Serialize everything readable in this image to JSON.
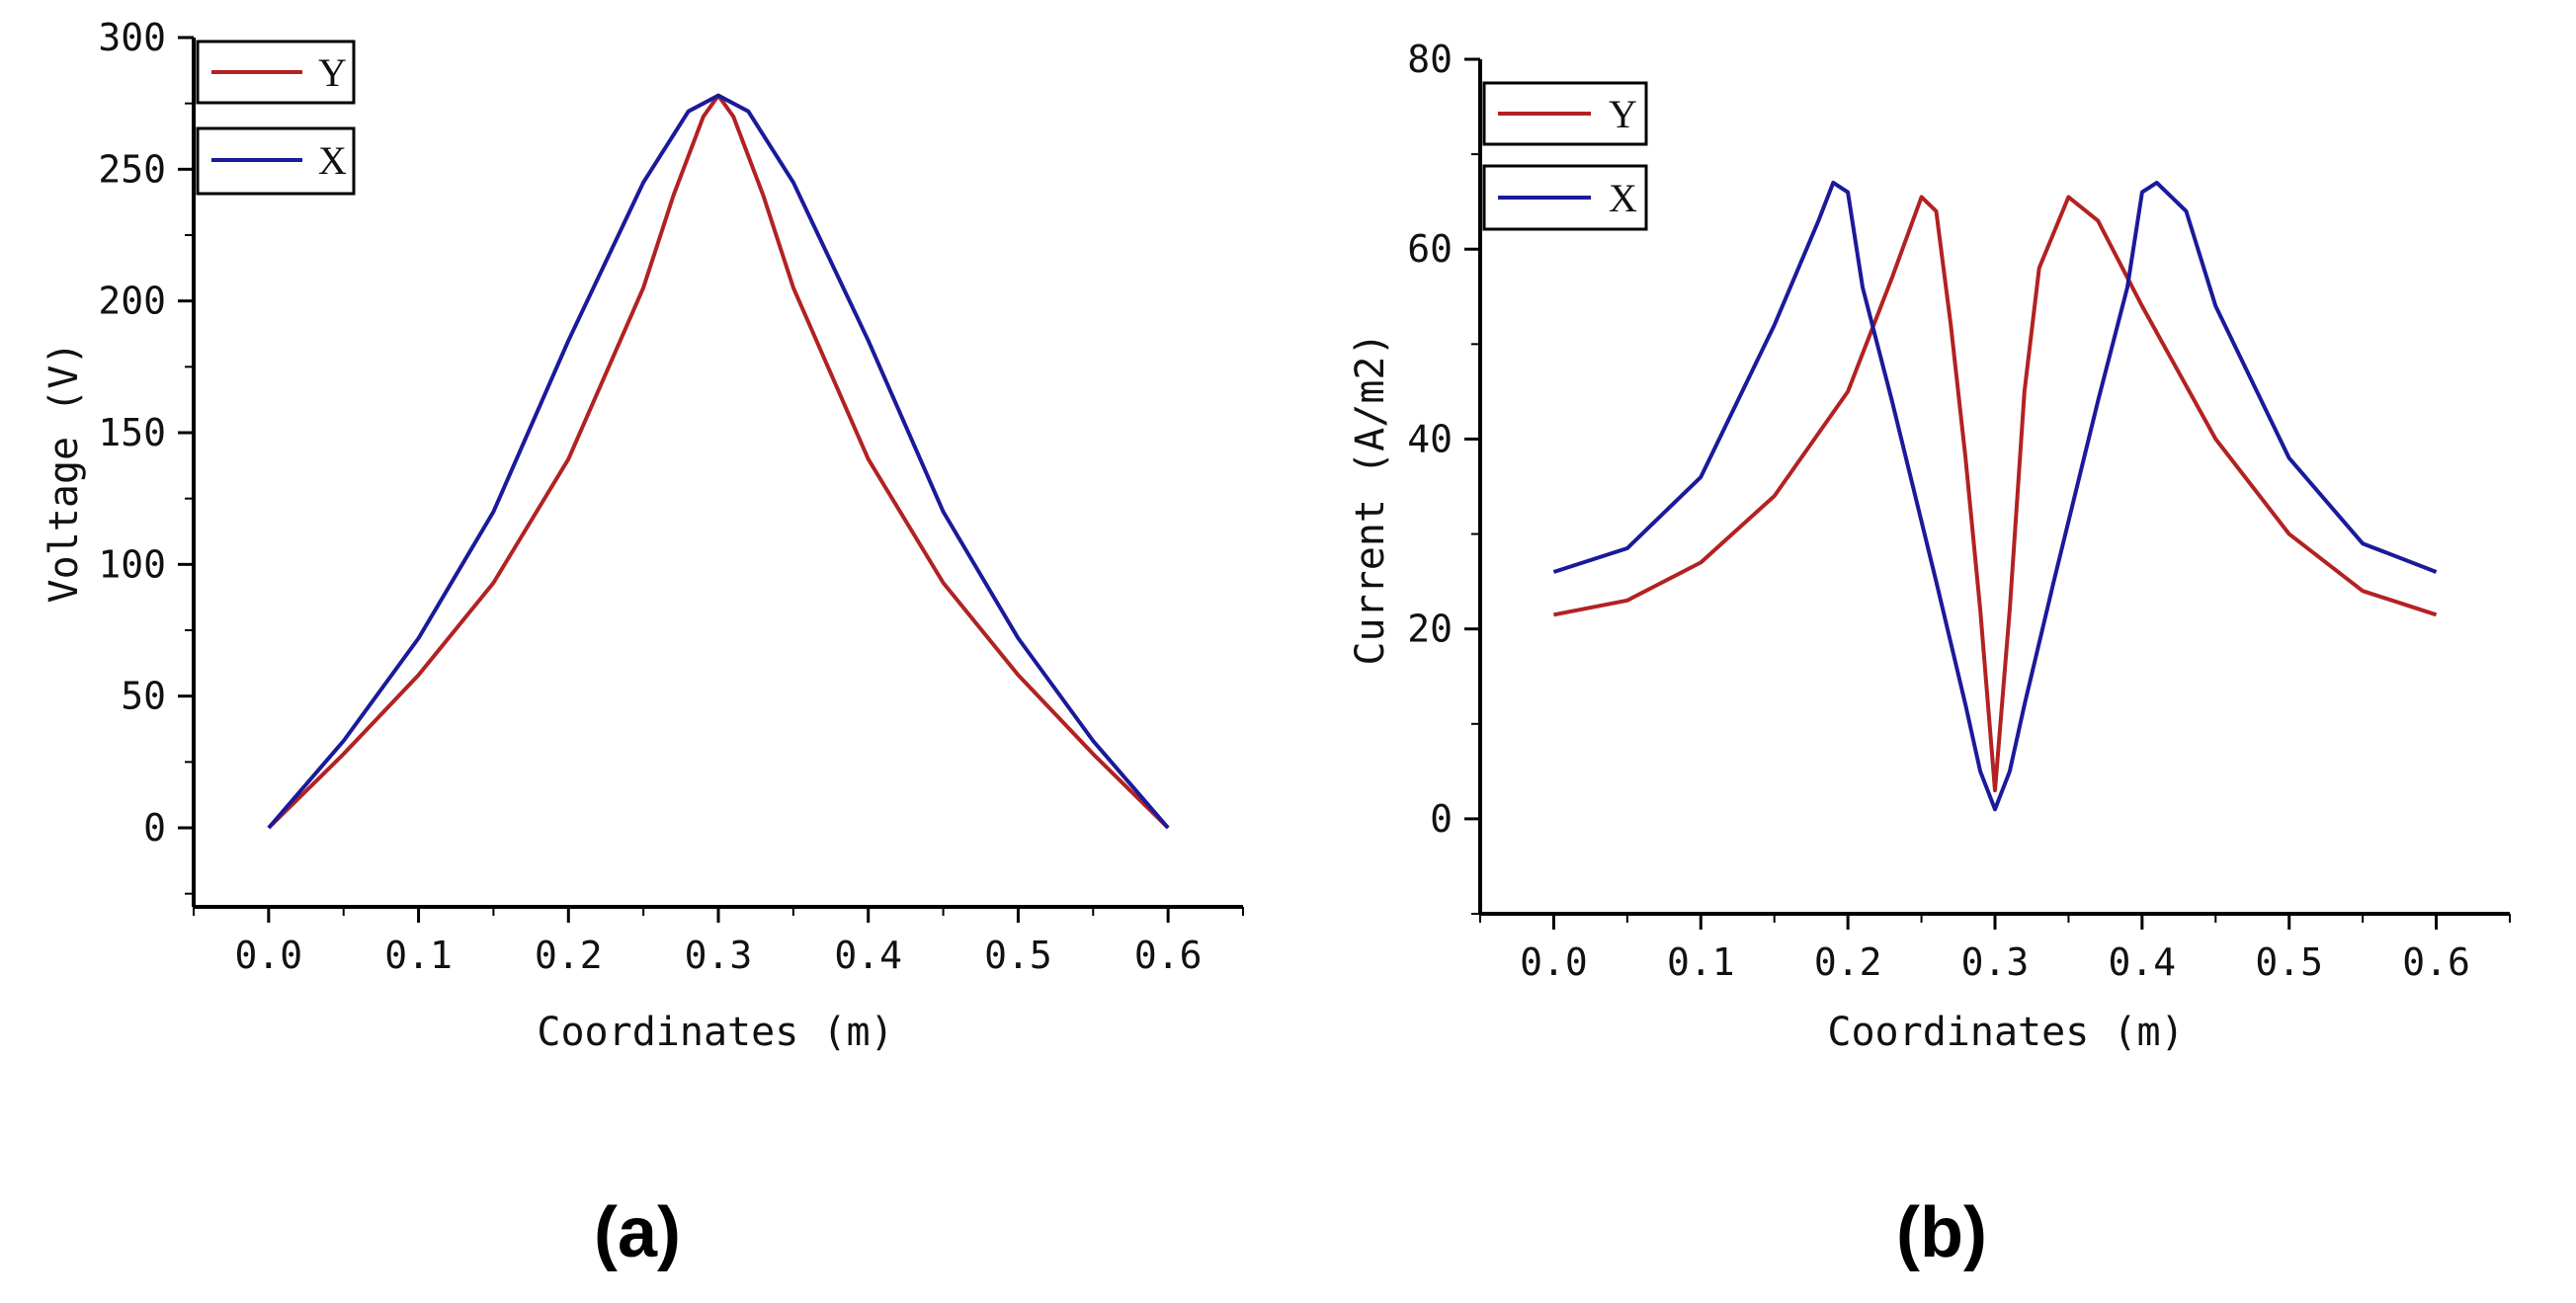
{
  "chart_data": [
    {
      "panel": "(a)",
      "type": "line",
      "xlabel": "Coordinates (m)",
      "ylabel": "Voltage (V)",
      "xlim": [
        -0.05,
        0.65
      ],
      "ylim": [
        -30,
        300
      ],
      "xticks": [
        "0.0",
        "0.1",
        "0.2",
        "0.3",
        "0.4",
        "0.5",
        "0.6"
      ],
      "yticks": [
        "0",
        "50",
        "100",
        "150",
        "200",
        "250",
        "300"
      ],
      "legend_position": "top-left",
      "series": [
        {
          "name": "Y",
          "color": "#b22222",
          "points": [
            [
              0.0,
              0
            ],
            [
              0.05,
              28
            ],
            [
              0.1,
              58
            ],
            [
              0.15,
              93
            ],
            [
              0.2,
              140
            ],
            [
              0.25,
              205
            ],
            [
              0.27,
              240
            ],
            [
              0.29,
              270
            ],
            [
              0.3,
              278
            ],
            [
              0.31,
              270
            ],
            [
              0.33,
              240
            ],
            [
              0.35,
              205
            ],
            [
              0.4,
              140
            ],
            [
              0.45,
              93
            ],
            [
              0.5,
              58
            ],
            [
              0.55,
              28
            ],
            [
              0.6,
              0
            ]
          ]
        },
        {
          "name": "X",
          "color": "#1a1a9a",
          "points": [
            [
              0.0,
              0
            ],
            [
              0.05,
              33
            ],
            [
              0.1,
              72
            ],
            [
              0.15,
              120
            ],
            [
              0.2,
              185
            ],
            [
              0.25,
              245
            ],
            [
              0.28,
              272
            ],
            [
              0.3,
              278
            ],
            [
              0.32,
              272
            ],
            [
              0.35,
              245
            ],
            [
              0.4,
              185
            ],
            [
              0.45,
              120
            ],
            [
              0.5,
              72
            ],
            [
              0.55,
              33
            ],
            [
              0.6,
              0
            ]
          ]
        }
      ]
    },
    {
      "panel": "(b)",
      "type": "line",
      "xlabel": "Coordinates (m)",
      "ylabel": "Current (A/m2)",
      "xlim": [
        -0.05,
        0.65
      ],
      "ylim": [
        -10,
        80
      ],
      "xticks": [
        "0.0",
        "0.1",
        "0.2",
        "0.3",
        "0.4",
        "0.5",
        "0.6"
      ],
      "yticks": [
        "0",
        "20",
        "40",
        "60",
        "80"
      ],
      "legend_position": "top-left",
      "series": [
        {
          "name": "Y",
          "color": "#b22222",
          "points": [
            [
              0.0,
              21.5
            ],
            [
              0.05,
              23
            ],
            [
              0.1,
              27
            ],
            [
              0.15,
              34
            ],
            [
              0.2,
              45
            ],
            [
              0.23,
              57
            ],
            [
              0.25,
              65.5
            ],
            [
              0.26,
              64
            ],
            [
              0.27,
              52
            ],
            [
              0.28,
              38
            ],
            [
              0.29,
              22
            ],
            [
              0.3,
              3
            ],
            [
              0.31,
              22
            ],
            [
              0.32,
              45
            ],
            [
              0.33,
              58
            ],
            [
              0.35,
              65.5
            ],
            [
              0.37,
              63
            ],
            [
              0.4,
              54
            ],
            [
              0.45,
              40
            ],
            [
              0.5,
              30
            ],
            [
              0.55,
              24
            ],
            [
              0.6,
              21.5
            ]
          ]
        },
        {
          "name": "X",
          "color": "#1a1a9a",
          "points": [
            [
              0.0,
              26
            ],
            [
              0.05,
              28.5
            ],
            [
              0.1,
              36
            ],
            [
              0.15,
              52
            ],
            [
              0.18,
              63
            ],
            [
              0.19,
              67
            ],
            [
              0.2,
              66
            ],
            [
              0.21,
              56
            ],
            [
              0.23,
              44
            ],
            [
              0.26,
              25
            ],
            [
              0.28,
              12
            ],
            [
              0.29,
              5
            ],
            [
              0.3,
              1
            ],
            [
              0.31,
              5
            ],
            [
              0.32,
              12
            ],
            [
              0.34,
              25
            ],
            [
              0.37,
              44
            ],
            [
              0.39,
              56
            ],
            [
              0.4,
              66
            ],
            [
              0.41,
              67
            ],
            [
              0.43,
              64
            ],
            [
              0.45,
              54
            ],
            [
              0.5,
              38
            ],
            [
              0.55,
              29
            ],
            [
              0.6,
              26
            ]
          ]
        }
      ]
    }
  ]
}
